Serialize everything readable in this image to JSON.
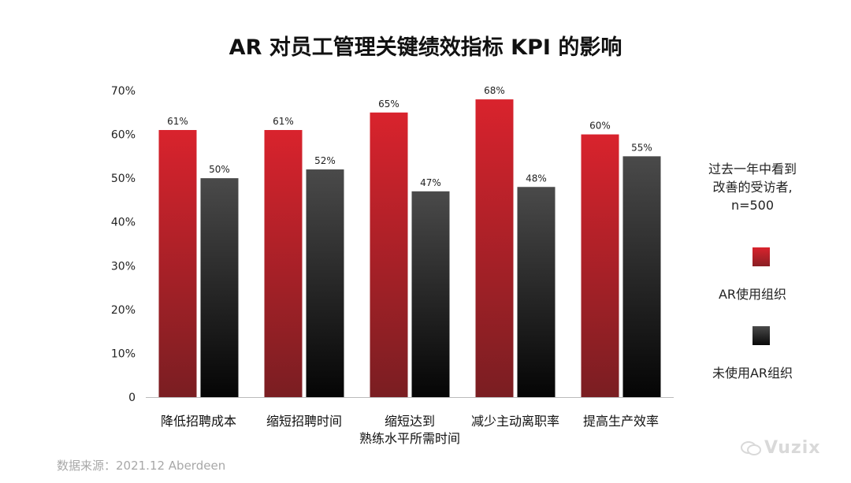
{
  "title": "AR 对员工管理关键绩效指标 KPI 的影响",
  "source": "数据来源：2021.12 Aberdeen",
  "watermark": "Vuzix",
  "legend": {
    "title_lines": [
      "过去一年中看到",
      "改善的受访者,",
      "n=500"
    ],
    "items": [
      {
        "label": "AR使用组织",
        "color": "#d0232c"
      },
      {
        "label": "未使用AR组织",
        "color": "#3a3a3a"
      }
    ]
  },
  "chart_data": {
    "type": "bar",
    "categories": [
      [
        "降低招聘成本"
      ],
      [
        "缩短招聘时间"
      ],
      [
        "缩短达到",
        "熟练水平所需时间"
      ],
      [
        "减少主动离职率"
      ],
      [
        "提高生产效率"
      ]
    ],
    "series": [
      {
        "name": "AR使用组织",
        "values": [
          61,
          61,
          65,
          68,
          60
        ],
        "color": "#d0232c"
      },
      {
        "name": "未使用AR组织",
        "values": [
          50,
          52,
          47,
          48,
          55
        ],
        "color": "#3a3a3a"
      }
    ],
    "data_labels": [
      [
        "61%",
        "61%",
        "65%",
        "68%",
        "60%"
      ],
      [
        "50%",
        "52%",
        "47%",
        "48%",
        "55%"
      ]
    ],
    "y_ticks": [
      "0",
      "10%",
      "20%",
      "30%",
      "40%",
      "50%",
      "60%",
      "70%"
    ],
    "ylim": [
      0,
      70
    ],
    "grid": false,
    "legend_position": "right"
  }
}
